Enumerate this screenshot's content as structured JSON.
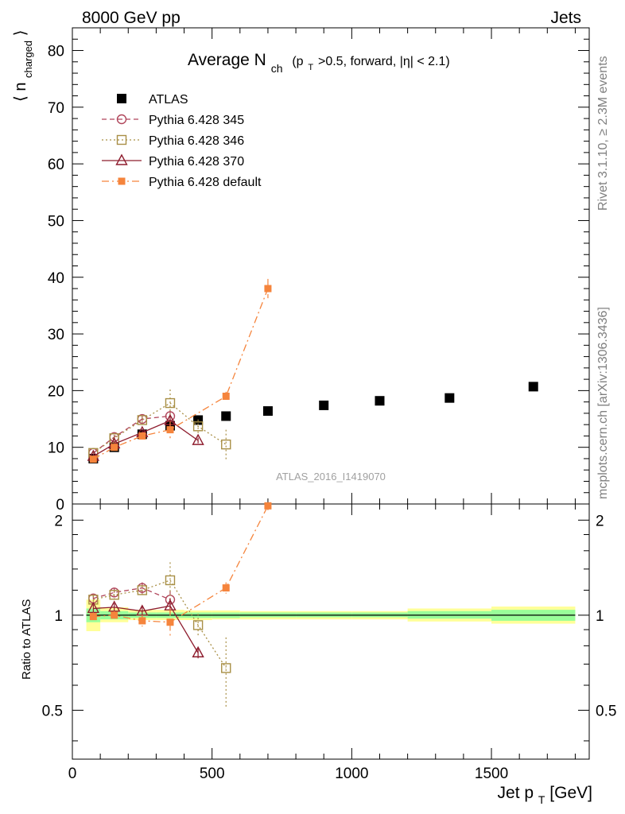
{
  "header": {
    "left_label": "8000 GeV pp",
    "right_label": "Jets"
  },
  "side_text": {
    "rivet": "Rivet 3.1.10, ≥ 2.3M events",
    "mcplots": "mcplots.cern.ch [arXiv:1306.3436]"
  },
  "watermark": "ATLAS_2016_I1419070",
  "chart_data": [
    {
      "type": "scatter",
      "panel": "main",
      "title": "Average N",
      "title_sub": "ch",
      "title_cond_pre": "(p",
      "title_cond_sub": "T",
      "title_cond_post": ">0.5, forward, |η| < 2.1)",
      "ylabel_pre": "⟨ n",
      "ylabel_sub": "charged",
      "ylabel_post": "⟩",
      "xlim": [
        0,
        1850
      ],
      "ylim": [
        0,
        84
      ],
      "yticks": [
        0,
        10,
        20,
        30,
        40,
        50,
        60,
        70,
        80
      ],
      "grid": false,
      "legend_position": "top-left",
      "series": [
        {
          "name": "ATLAS",
          "color": "#000000",
          "marker": "filled-square",
          "line": "none",
          "points": [
            {
              "x": 75,
              "y": 8.0,
              "err": 0.3
            },
            {
              "x": 150,
              "y": 10.0,
              "err": 0.3
            },
            {
              "x": 250,
              "y": 12.3,
              "err": 0.3
            },
            {
              "x": 350,
              "y": 13.8,
              "err": 0.3
            },
            {
              "x": 450,
              "y": 14.8,
              "err": 0.3
            },
            {
              "x": 550,
              "y": 15.5,
              "err": 0.3
            },
            {
              "x": 700,
              "y": 16.4,
              "err": 0.3
            },
            {
              "x": 900,
              "y": 17.4,
              "err": 0.3
            },
            {
              "x": 1100,
              "y": 18.2,
              "err": 0.3
            },
            {
              "x": 1350,
              "y": 18.7,
              "err": 0.3
            },
            {
              "x": 1650,
              "y": 20.7,
              "err": 0.3
            }
          ]
        },
        {
          "name": "Pythia 6.428 345",
          "color": "#b0455a",
          "marker": "open-circle",
          "line": "dashed",
          "points": [
            {
              "x": 75,
              "y": 9.0,
              "err": 0.3
            },
            {
              "x": 150,
              "y": 11.8,
              "err": 0.4
            },
            {
              "x": 250,
              "y": 15.0,
              "err": 0.5
            },
            {
              "x": 350,
              "y": 15.5,
              "err": 1.0
            }
          ]
        },
        {
          "name": "Pythia 6.428 346",
          "color": "#a88f45",
          "marker": "open-square",
          "line": "dotted",
          "points": [
            {
              "x": 75,
              "y": 9.0,
              "err": 0.3
            },
            {
              "x": 150,
              "y": 11.6,
              "err": 0.4
            },
            {
              "x": 250,
              "y": 14.8,
              "err": 0.5
            },
            {
              "x": 350,
              "y": 17.8,
              "err": 2.4
            },
            {
              "x": 450,
              "y": 13.7,
              "err": 1.2
            },
            {
              "x": 550,
              "y": 10.5,
              "err": 2.6
            }
          ]
        },
        {
          "name": "Pythia 6.428 370",
          "color": "#8e1d2e",
          "marker": "open-triangle",
          "line": "solid",
          "points": [
            {
              "x": 75,
              "y": 8.4,
              "err": 0.3
            },
            {
              "x": 150,
              "y": 10.6,
              "err": 0.4
            },
            {
              "x": 250,
              "y": 12.6,
              "err": 0.5
            },
            {
              "x": 350,
              "y": 14.7,
              "err": 0.8
            },
            {
              "x": 450,
              "y": 11.2,
              "err": 0.5
            }
          ]
        },
        {
          "name": "Pythia 6.428 default",
          "color": "#f5843c",
          "marker": "filled-small-square",
          "line": "dashdot",
          "points": [
            {
              "x": 75,
              "y": 7.9,
              "err": 0.3
            },
            {
              "x": 150,
              "y": 10.0,
              "err": 0.4
            },
            {
              "x": 250,
              "y": 12.0,
              "err": 0.6
            },
            {
              "x": 350,
              "y": 13.1,
              "err": 1.5
            },
            {
              "x": 550,
              "y": 19.0,
              "err": 0.8
            },
            {
              "x": 700,
              "y": 38.0,
              "err": 1.7
            }
          ]
        }
      ]
    },
    {
      "type": "scatter",
      "panel": "ratio",
      "ylabel": "Ratio to ATLAS",
      "xlabel_pre": "Jet p",
      "xlabel_sub": "T",
      "xlabel_post": " [GeV]",
      "xlim": [
        0,
        1850
      ],
      "ylim": [
        0.35,
        2.25
      ],
      "y_scale": "log",
      "yticks": [
        0.5,
        1,
        2
      ],
      "xticks": [
        0,
        500,
        1000,
        1500
      ],
      "reference_line": 1,
      "bands": [
        {
          "x0": 50,
          "x1": 100,
          "inner": [
            0.95,
            1.05
          ],
          "outer": [
            0.89,
            1.12
          ]
        },
        {
          "x0": 100,
          "x1": 200,
          "inner": [
            0.97,
            1.03
          ],
          "outer": [
            0.95,
            1.06
          ]
        },
        {
          "x0": 200,
          "x1": 300,
          "inner": [
            0.98,
            1.02
          ],
          "outer": [
            0.965,
            1.04
          ]
        },
        {
          "x0": 300,
          "x1": 400,
          "inner": [
            0.98,
            1.02
          ],
          "outer": [
            0.965,
            1.04
          ]
        },
        {
          "x0": 400,
          "x1": 500,
          "inner": [
            0.98,
            1.02
          ],
          "outer": [
            0.965,
            1.035
          ]
        },
        {
          "x0": 500,
          "x1": 600,
          "inner": [
            0.98,
            1.02
          ],
          "outer": [
            0.97,
            1.035
          ]
        },
        {
          "x0": 600,
          "x1": 800,
          "inner": [
            0.985,
            1.02
          ],
          "outer": [
            0.97,
            1.03
          ]
        },
        {
          "x0": 800,
          "x1": 1000,
          "inner": [
            0.985,
            1.02
          ],
          "outer": [
            0.97,
            1.03
          ]
        },
        {
          "x0": 1000,
          "x1": 1200,
          "inner": [
            0.985,
            1.02
          ],
          "outer": [
            0.97,
            1.03
          ]
        },
        {
          "x0": 1200,
          "x1": 1500,
          "inner": [
            0.975,
            1.03
          ],
          "outer": [
            0.955,
            1.05
          ]
        },
        {
          "x0": 1500,
          "x1": 1800,
          "inner": [
            0.96,
            1.04
          ],
          "outer": [
            0.94,
            1.065
          ]
        }
      ],
      "series": [
        {
          "name": "Pythia 6.428 345",
          "color": "#b0455a",
          "marker": "open-circle",
          "line": "dashed",
          "points": [
            {
              "x": 75,
              "y": 1.13,
              "err": 0.03
            },
            {
              "x": 150,
              "y": 1.18,
              "err": 0.04
            },
            {
              "x": 250,
              "y": 1.22,
              "err": 0.05
            },
            {
              "x": 350,
              "y": 1.12,
              "err": 0.08
            }
          ]
        },
        {
          "name": "Pythia 6.428 346",
          "color": "#a88f45",
          "marker": "open-square",
          "line": "dotted",
          "points": [
            {
              "x": 75,
              "y": 1.12,
              "err": 0.03
            },
            {
              "x": 150,
              "y": 1.16,
              "err": 0.04
            },
            {
              "x": 250,
              "y": 1.2,
              "err": 0.04
            },
            {
              "x": 350,
              "y": 1.29,
              "err": 0.18
            },
            {
              "x": 450,
              "y": 0.93,
              "err": 0.08
            },
            {
              "x": 550,
              "y": 0.68,
              "err": 0.17
            }
          ]
        },
        {
          "name": "Pythia 6.428 370",
          "color": "#8e1d2e",
          "marker": "open-triangle",
          "line": "solid",
          "points": [
            {
              "x": 75,
              "y": 1.05,
              "err": 0.03
            },
            {
              "x": 150,
              "y": 1.06,
              "err": 0.03
            },
            {
              "x": 250,
              "y": 1.03,
              "err": 0.04
            },
            {
              "x": 350,
              "y": 1.07,
              "err": 0.06
            },
            {
              "x": 450,
              "y": 0.76,
              "err": 0.03
            }
          ]
        },
        {
          "name": "Pythia 6.428 default",
          "color": "#f5843c",
          "marker": "filled-small-square",
          "line": "dashdot",
          "points": [
            {
              "x": 75,
              "y": 0.99,
              "err": 0.03
            },
            {
              "x": 150,
              "y": 1.0,
              "err": 0.03
            },
            {
              "x": 250,
              "y": 0.96,
              "err": 0.04
            },
            {
              "x": 350,
              "y": 0.95,
              "err": 0.1
            },
            {
              "x": 550,
              "y": 1.22,
              "err": 0.05
            },
            {
              "x": 700,
              "y": 2.22,
              "err": 0.07
            }
          ]
        }
      ]
    }
  ]
}
